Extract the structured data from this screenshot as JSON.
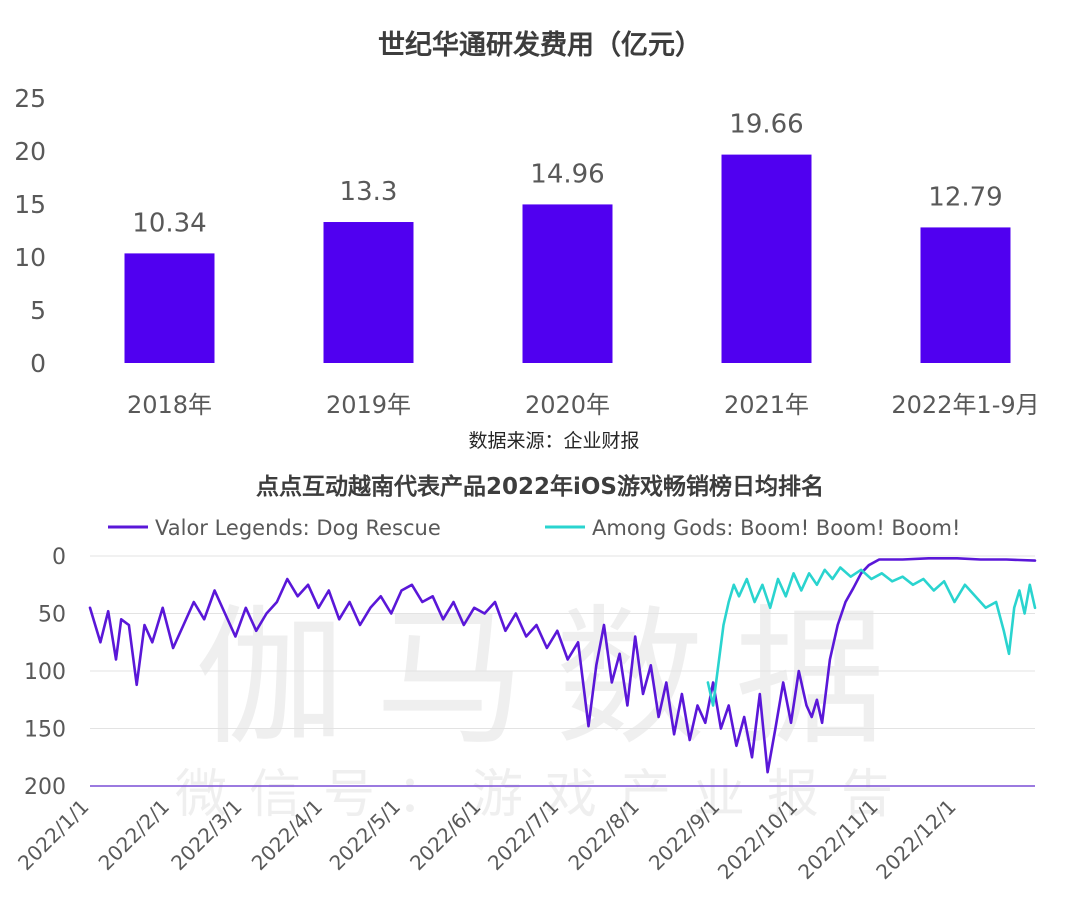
{
  "chart_data": [
    {
      "type": "bar",
      "title": "世纪华通研发费用（亿元）",
      "categories": [
        "2018年",
        "2019年",
        "2020年",
        "2021年",
        "2022年1-9月"
      ],
      "values": [
        10.34,
        13.3,
        14.96,
        19.66,
        12.79
      ],
      "data_labels": [
        "10.34",
        "13.3",
        "14.96",
        "19.66",
        "12.79"
      ],
      "ylim": [
        0,
        25
      ],
      "yticks": [
        "0",
        "5",
        "10",
        "15",
        "20",
        "25"
      ],
      "bar_color": "#5000f0",
      "source": "数据来源：企业财报",
      "grid": false
    },
    {
      "type": "line",
      "title": "点点互动越南代表产品2022年iOS游戏畅销榜日均排名",
      "y_inverted": true,
      "ylim": [
        0,
        200
      ],
      "yticks": [
        "0",
        "50",
        "100",
        "150",
        "200"
      ],
      "xlim": [
        "2022-01-01",
        "2022-12-31"
      ],
      "xticks": [
        "2022/1/1",
        "2022/2/1",
        "2022/3/1",
        "2022/4/1",
        "2022/5/1",
        "2022/6/1",
        "2022/7/1",
        "2022/8/1",
        "2022/9/1",
        "2022/10/1",
        "2022/11/1",
        "2022/12/1"
      ],
      "legend_position": "top",
      "grid": true,
      "series": [
        {
          "name": "Valor Legends: Dog Rescue",
          "color": "#5a17d8",
          "points": [
            [
              "2022-01-01",
              45
            ],
            [
              "2022-01-05",
              75
            ],
            [
              "2022-01-08",
              48
            ],
            [
              "2022-01-11",
              90
            ],
            [
              "2022-01-13",
              55
            ],
            [
              "2022-01-16",
              60
            ],
            [
              "2022-01-19",
              112
            ],
            [
              "2022-01-22",
              60
            ],
            [
              "2022-01-25",
              75
            ],
            [
              "2022-01-29",
              45
            ],
            [
              "2022-02-02",
              80
            ],
            [
              "2022-02-06",
              60
            ],
            [
              "2022-02-10",
              40
            ],
            [
              "2022-02-14",
              55
            ],
            [
              "2022-02-18",
              30
            ],
            [
              "2022-02-22",
              50
            ],
            [
              "2022-02-26",
              70
            ],
            [
              "2022-03-02",
              45
            ],
            [
              "2022-03-06",
              65
            ],
            [
              "2022-03-10",
              50
            ],
            [
              "2022-03-14",
              40
            ],
            [
              "2022-03-18",
              20
            ],
            [
              "2022-03-22",
              35
            ],
            [
              "2022-03-26",
              25
            ],
            [
              "2022-03-30",
              45
            ],
            [
              "2022-04-03",
              30
            ],
            [
              "2022-04-07",
              55
            ],
            [
              "2022-04-11",
              40
            ],
            [
              "2022-04-15",
              60
            ],
            [
              "2022-04-19",
              45
            ],
            [
              "2022-04-23",
              35
            ],
            [
              "2022-04-27",
              50
            ],
            [
              "2022-05-01",
              30
            ],
            [
              "2022-05-05",
              25
            ],
            [
              "2022-05-09",
              40
            ],
            [
              "2022-05-13",
              35
            ],
            [
              "2022-05-17",
              55
            ],
            [
              "2022-05-21",
              40
            ],
            [
              "2022-05-25",
              60
            ],
            [
              "2022-05-29",
              45
            ],
            [
              "2022-06-02",
              50
            ],
            [
              "2022-06-06",
              40
            ],
            [
              "2022-06-10",
              65
            ],
            [
              "2022-06-14",
              50
            ],
            [
              "2022-06-18",
              70
            ],
            [
              "2022-06-22",
              60
            ],
            [
              "2022-06-26",
              80
            ],
            [
              "2022-06-30",
              65
            ],
            [
              "2022-07-04",
              90
            ],
            [
              "2022-07-08",
              75
            ],
            [
              "2022-07-12",
              148
            ],
            [
              "2022-07-15",
              95
            ],
            [
              "2022-07-18",
              60
            ],
            [
              "2022-07-21",
              110
            ],
            [
              "2022-07-24",
              85
            ],
            [
              "2022-07-27",
              130
            ],
            [
              "2022-07-30",
              70
            ],
            [
              "2022-08-02",
              120
            ],
            [
              "2022-08-05",
              95
            ],
            [
              "2022-08-08",
              140
            ],
            [
              "2022-08-11",
              110
            ],
            [
              "2022-08-14",
              155
            ],
            [
              "2022-08-17",
              120
            ],
            [
              "2022-08-20",
              160
            ],
            [
              "2022-08-23",
              130
            ],
            [
              "2022-08-26",
              145
            ],
            [
              "2022-08-29",
              110
            ],
            [
              "2022-09-01",
              150
            ],
            [
              "2022-09-04",
              130
            ],
            [
              "2022-09-07",
              165
            ],
            [
              "2022-09-10",
              140
            ],
            [
              "2022-09-13",
              175
            ],
            [
              "2022-09-16",
              120
            ],
            [
              "2022-09-19",
              188
            ],
            [
              "2022-09-22",
              150
            ],
            [
              "2022-09-25",
              110
            ],
            [
              "2022-09-28",
              145
            ],
            [
              "2022-10-01",
              100
            ],
            [
              "2022-10-04",
              130
            ],
            [
              "2022-10-06",
              140
            ],
            [
              "2022-10-08",
              125
            ],
            [
              "2022-10-10",
              145
            ],
            [
              "2022-10-13",
              90
            ],
            [
              "2022-10-16",
              60
            ],
            [
              "2022-10-19",
              40
            ],
            [
              "2022-10-22",
              28
            ],
            [
              "2022-10-25",
              15
            ],
            [
              "2022-10-28",
              8
            ],
            [
              "2022-11-01",
              3
            ],
            [
              "2022-11-10",
              3
            ],
            [
              "2022-11-20",
              2
            ],
            [
              "2022-12-01",
              2
            ],
            [
              "2022-12-10",
              3
            ],
            [
              "2022-12-20",
              3
            ],
            [
              "2022-12-31",
              4
            ]
          ]
        },
        {
          "name": "Among Gods: Boom! Boom! Boom!",
          "color": "#2ad4cf",
          "points": [
            [
              "2022-08-27",
              110
            ],
            [
              "2022-08-29",
              130
            ],
            [
              "2022-08-31",
              95
            ],
            [
              "2022-09-02",
              60
            ],
            [
              "2022-09-04",
              40
            ],
            [
              "2022-09-06",
              25
            ],
            [
              "2022-09-08",
              35
            ],
            [
              "2022-09-11",
              20
            ],
            [
              "2022-09-14",
              40
            ],
            [
              "2022-09-17",
              25
            ],
            [
              "2022-09-20",
              45
            ],
            [
              "2022-09-23",
              20
            ],
            [
              "2022-09-26",
              35
            ],
            [
              "2022-09-29",
              15
            ],
            [
              "2022-10-02",
              30
            ],
            [
              "2022-10-05",
              15
            ],
            [
              "2022-10-08",
              25
            ],
            [
              "2022-10-11",
              12
            ],
            [
              "2022-10-14",
              20
            ],
            [
              "2022-10-17",
              10
            ],
            [
              "2022-10-21",
              18
            ],
            [
              "2022-10-25",
              12
            ],
            [
              "2022-10-29",
              20
            ],
            [
              "2022-11-02",
              15
            ],
            [
              "2022-11-06",
              22
            ],
            [
              "2022-11-10",
              18
            ],
            [
              "2022-11-14",
              25
            ],
            [
              "2022-11-18",
              20
            ],
            [
              "2022-11-22",
              30
            ],
            [
              "2022-11-26",
              22
            ],
            [
              "2022-11-30",
              40
            ],
            [
              "2022-12-04",
              25
            ],
            [
              "2022-12-08",
              35
            ],
            [
              "2022-12-12",
              45
            ],
            [
              "2022-12-16",
              40
            ],
            [
              "2022-12-19",
              65
            ],
            [
              "2022-12-21",
              85
            ],
            [
              "2022-12-23",
              45
            ],
            [
              "2022-12-25",
              30
            ],
            [
              "2022-12-27",
              50
            ],
            [
              "2022-12-29",
              25
            ],
            [
              "2022-12-31",
              45
            ]
          ]
        }
      ]
    }
  ],
  "watermark": {
    "main": "伽马数据",
    "sub": "微信号：游戏产业报告"
  }
}
